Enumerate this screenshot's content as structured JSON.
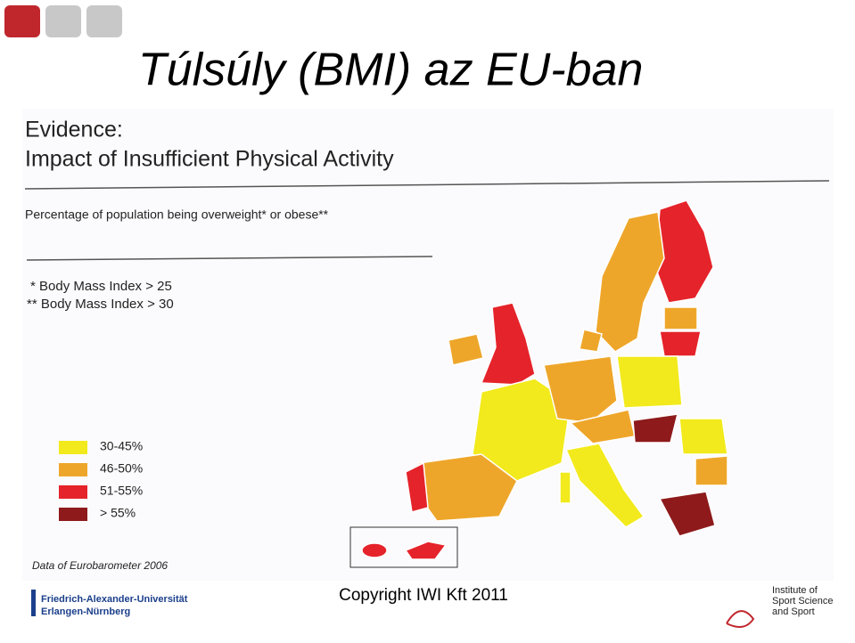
{
  "slide": {
    "title": "Túlsúly (BMI) az EU-ban",
    "copyright": "Copyright IWI Kft 2011"
  },
  "image": {
    "heading": [
      "Evidence:",
      "Impact of Insufficient Physical Activity"
    ],
    "subtitle": "Percentage of population being overweight* or obese**",
    "notes": [
      "* Body Mass Index > 25",
      "** Body Mass Index > 30"
    ],
    "legend": [
      {
        "label": "30-45%",
        "color": "#f2ea1c"
      },
      {
        "label": "46-50%",
        "color": "#eea62a"
      },
      {
        "label": "51-55%",
        "color": "#e5232a"
      },
      {
        "label": "> 55%",
        "color": "#8e1a1c"
      }
    ],
    "source": "Data of Eurobarometer 2006"
  },
  "footer": {
    "left": [
      "Friedrich-Alexander-Universität",
      "Erlangen-Nürnberg"
    ],
    "right": [
      "Institute of",
      "Sport Science",
      "and Sport"
    ]
  }
}
